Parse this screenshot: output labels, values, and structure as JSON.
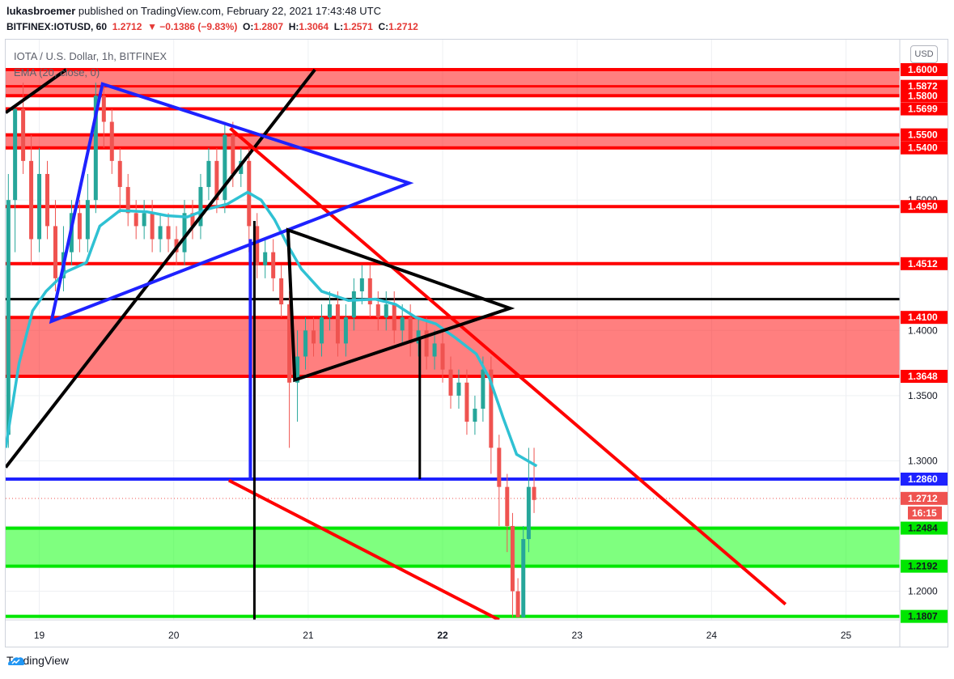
{
  "header": {
    "author": "lukasbroemer",
    "published_text": "published on TradingView.com, February 22, 2021 17:43:48 UTC",
    "symbol": "BITFINEX:IOTUSD, 60",
    "last": "1.2712",
    "change": "▼ −0.1386 (−9.83%)",
    "o_label": "O:",
    "o_val": "1.2807",
    "h_label": "H:",
    "h_val": "1.3064",
    "l_label": "L:",
    "l_val": "1.2571",
    "c_label": "C:",
    "c_val": "1.2712"
  },
  "legend": {
    "title": "IOTA / U.S. Dollar, 1h, BITFINEX",
    "ema": "EMA (20, close, 0)"
  },
  "currency_button": "USD",
  "footer": {
    "brand": "TradingView"
  },
  "colors": {
    "up": "#26a69a",
    "down": "#ef5350",
    "ema": "#2fc1d3",
    "resistance": "#ff0000",
    "support": "#00e600",
    "blue": "#1e22ff",
    "black": "#000000"
  },
  "chart_data": {
    "type": "candlestick",
    "title": "IOTA / U.S. Dollar, 1h, BITFINEX",
    "x_ticks": [
      "19",
      "20",
      "21",
      "22",
      "23",
      "24",
      "25"
    ],
    "y_ticks": [
      "1.2000",
      "1.3000",
      "1.3500",
      "1.4000",
      "1.5000"
    ],
    "y_range": [
      1.178,
      1.623
    ],
    "x_range_days": [
      18.75,
      25.4
    ],
    "current_price": "1.2712",
    "countdown": "16:15",
    "horizontal_levels": [
      {
        "label": "1.6000",
        "value": 1.6,
        "color": "red"
      },
      {
        "label": "1.5872",
        "value": 1.5872,
        "color": "red"
      },
      {
        "label": "1.5800",
        "value": 1.58,
        "color": "red"
      },
      {
        "label": "1.5699",
        "value": 1.5699,
        "color": "red"
      },
      {
        "label": "1.5500",
        "value": 1.55,
        "color": "red"
      },
      {
        "label": "1.5400",
        "value": 1.54,
        "color": "red"
      },
      {
        "label": "1.4950",
        "value": 1.495,
        "color": "red"
      },
      {
        "label": "1.4512",
        "value": 1.4512,
        "color": "red"
      },
      {
        "label": "1.4100",
        "value": 1.41,
        "color": "red"
      },
      {
        "label": "1.3648",
        "value": 1.3648,
        "color": "red"
      },
      {
        "label": "1.2860",
        "value": 1.286,
        "color": "blue"
      },
      {
        "label": "1.2484",
        "value": 1.2484,
        "color": "green"
      },
      {
        "label": "1.2192",
        "value": 1.2192,
        "color": "green"
      },
      {
        "label": "1.1807",
        "value": 1.1807,
        "color": "green"
      }
    ],
    "zones": [
      {
        "from": 1.58,
        "to": 1.6,
        "color": "red"
      },
      {
        "from": 1.54,
        "to": 1.55,
        "color": "red"
      },
      {
        "from": 1.3648,
        "to": 1.41,
        "color": "red"
      },
      {
        "from": 1.2192,
        "to": 1.2484,
        "color": "green"
      }
    ],
    "series": [
      {
        "name": "EMA (20, close, 0)",
        "points": [
          [
            18.75,
            1.31
          ],
          [
            18.85,
            1.375
          ],
          [
            18.95,
            1.415
          ],
          [
            19.05,
            1.43
          ],
          [
            19.2,
            1.445
          ],
          [
            19.35,
            1.452
          ],
          [
            19.45,
            1.48
          ],
          [
            19.6,
            1.492
          ],
          [
            19.8,
            1.491
          ],
          [
            19.95,
            1.488
          ],
          [
            20.1,
            1.487
          ],
          [
            20.25,
            1.493
          ],
          [
            20.4,
            1.497
          ],
          [
            20.55,
            1.506
          ],
          [
            20.65,
            1.5
          ],
          [
            20.75,
            1.485
          ],
          [
            20.85,
            1.465
          ],
          [
            20.95,
            1.447
          ],
          [
            21.1,
            1.43
          ],
          [
            21.3,
            1.423
          ],
          [
            21.5,
            1.424
          ],
          [
            21.65,
            1.42
          ],
          [
            21.8,
            1.41
          ],
          [
            21.95,
            1.405
          ],
          [
            22.1,
            1.394
          ],
          [
            22.25,
            1.382
          ],
          [
            22.35,
            1.363
          ],
          [
            22.45,
            1.333
          ],
          [
            22.55,
            1.305
          ],
          [
            22.7,
            1.296
          ]
        ]
      }
    ],
    "candles": [
      [
        18.77,
        1.32,
        1.5,
        1.52,
        1.31
      ],
      [
        18.82,
        1.5,
        1.57,
        1.57,
        1.46
      ],
      [
        18.88,
        1.57,
        1.53,
        1.59,
        1.52
      ],
      [
        18.94,
        1.53,
        1.47,
        1.55,
        1.45
      ],
      [
        19.0,
        1.47,
        1.52,
        1.54,
        1.46
      ],
      [
        19.06,
        1.52,
        1.48,
        1.53,
        1.47
      ],
      [
        19.12,
        1.48,
        1.44,
        1.5,
        1.43
      ],
      [
        19.18,
        1.44,
        1.46,
        1.48,
        1.43
      ],
      [
        19.24,
        1.46,
        1.49,
        1.5,
        1.45
      ],
      [
        19.3,
        1.49,
        1.47,
        1.5,
        1.46
      ],
      [
        19.36,
        1.47,
        1.5,
        1.52,
        1.46
      ],
      [
        19.42,
        1.5,
        1.58,
        1.59,
        1.49
      ],
      [
        19.48,
        1.58,
        1.56,
        1.59,
        1.54
      ],
      [
        19.54,
        1.56,
        1.53,
        1.57,
        1.52
      ],
      [
        19.6,
        1.53,
        1.51,
        1.54,
        1.49
      ],
      [
        19.66,
        1.51,
        1.49,
        1.52,
        1.48
      ],
      [
        19.72,
        1.49,
        1.48,
        1.5,
        1.47
      ],
      [
        19.78,
        1.48,
        1.49,
        1.5,
        1.47
      ],
      [
        19.84,
        1.49,
        1.47,
        1.5,
        1.46
      ],
      [
        19.9,
        1.47,
        1.48,
        1.49,
        1.46
      ],
      [
        19.96,
        1.48,
        1.47,
        1.49,
        1.46
      ],
      [
        20.02,
        1.47,
        1.46,
        1.48,
        1.45
      ],
      [
        20.08,
        1.46,
        1.49,
        1.5,
        1.45
      ],
      [
        20.14,
        1.49,
        1.48,
        1.5,
        1.47
      ],
      [
        20.2,
        1.48,
        1.51,
        1.52,
        1.47
      ],
      [
        20.26,
        1.51,
        1.53,
        1.54,
        1.5
      ],
      [
        20.32,
        1.53,
        1.5,
        1.54,
        1.49
      ],
      [
        20.38,
        1.5,
        1.55,
        1.56,
        1.49
      ],
      [
        20.44,
        1.55,
        1.52,
        1.56,
        1.51
      ],
      [
        20.5,
        1.52,
        1.53,
        1.54,
        1.51
      ],
      [
        20.56,
        1.53,
        1.48,
        1.54,
        1.46
      ],
      [
        20.62,
        1.48,
        1.45,
        1.49,
        1.44
      ],
      [
        20.68,
        1.45,
        1.46,
        1.47,
        1.44
      ],
      [
        20.74,
        1.46,
        1.44,
        1.47,
        1.43
      ],
      [
        20.8,
        1.44,
        1.42,
        1.45,
        1.41
      ],
      [
        20.86,
        1.42,
        1.36,
        1.43,
        1.31
      ],
      [
        20.92,
        1.36,
        1.38,
        1.4,
        1.33
      ],
      [
        20.98,
        1.38,
        1.4,
        1.41,
        1.37
      ],
      [
        21.04,
        1.4,
        1.39,
        1.41,
        1.38
      ],
      [
        21.1,
        1.39,
        1.41,
        1.42,
        1.38
      ],
      [
        21.16,
        1.41,
        1.42,
        1.43,
        1.4
      ],
      [
        21.22,
        1.42,
        1.39,
        1.43,
        1.38
      ],
      [
        21.28,
        1.39,
        1.41,
        1.42,
        1.38
      ],
      [
        21.34,
        1.41,
        1.43,
        1.44,
        1.4
      ],
      [
        21.4,
        1.43,
        1.44,
        1.45,
        1.42
      ],
      [
        21.46,
        1.44,
        1.42,
        1.45,
        1.41
      ],
      [
        21.52,
        1.42,
        1.41,
        1.43,
        1.4
      ],
      [
        21.58,
        1.41,
        1.42,
        1.43,
        1.4
      ],
      [
        21.64,
        1.42,
        1.4,
        1.43,
        1.39
      ],
      [
        21.7,
        1.4,
        1.41,
        1.42,
        1.39
      ],
      [
        21.76,
        1.41,
        1.39,
        1.42,
        1.38
      ],
      [
        21.82,
        1.39,
        1.4,
        1.41,
        1.38
      ],
      [
        21.88,
        1.4,
        1.38,
        1.41,
        1.37
      ],
      [
        21.94,
        1.38,
        1.39,
        1.4,
        1.37
      ],
      [
        22.0,
        1.39,
        1.37,
        1.4,
        1.36
      ],
      [
        22.06,
        1.37,
        1.35,
        1.38,
        1.34
      ],
      [
        22.12,
        1.35,
        1.36,
        1.37,
        1.34
      ],
      [
        22.18,
        1.36,
        1.33,
        1.37,
        1.32
      ],
      [
        22.24,
        1.33,
        1.34,
        1.35,
        1.32
      ],
      [
        22.3,
        1.34,
        1.37,
        1.38,
        1.33
      ],
      [
        22.36,
        1.37,
        1.31,
        1.38,
        1.29
      ],
      [
        22.42,
        1.31,
        1.28,
        1.32,
        1.25
      ],
      [
        22.48,
        1.28,
        1.25,
        1.29,
        1.23
      ],
      [
        22.52,
        1.25,
        1.2,
        1.26,
        1.18
      ],
      [
        22.56,
        1.2,
        1.18,
        1.21,
        1.18
      ],
      [
        22.6,
        1.18,
        1.24,
        1.25,
        1.18
      ],
      [
        22.64,
        1.24,
        1.28,
        1.31,
        1.23
      ],
      [
        22.68,
        1.28,
        1.27,
        1.31,
        1.26
      ]
    ],
    "drawings": {
      "red_lines": [
        [
          [
            20.42,
            1.555
          ],
          [
            24.55,
            1.19
          ]
        ],
        [
          [
            20.41,
            1.285
          ],
          [
            22.42,
            1.178
          ]
        ]
      ],
      "blue_triangle": [
        [
          19.47,
          1.589
        ],
        [
          21.75,
          1.513
        ],
        [
          19.09,
          1.407
        ]
      ],
      "black_lines": [
        [
          [
            18.75,
            1.295
          ],
          [
            21.05,
            1.6
          ]
        ],
        [
          [
            18.75,
            1.567
          ],
          [
            19.2,
            1.6
          ]
        ]
      ],
      "black_triangle": [
        [
          20.85,
          1.477
        ],
        [
          22.5,
          1.417
        ],
        [
          20.9,
          1.362
        ]
      ],
      "black_horizontal": 1.424,
      "blue_vertical": {
        "x": 20.57,
        "from": 1.286,
        "to": 1.47
      },
      "black_vertical_1": {
        "x": 20.6,
        "from": 1.178,
        "to": 1.484
      },
      "black_vertical_2": {
        "x": 21.83,
        "from": 1.286,
        "to": 1.395
      }
    }
  }
}
